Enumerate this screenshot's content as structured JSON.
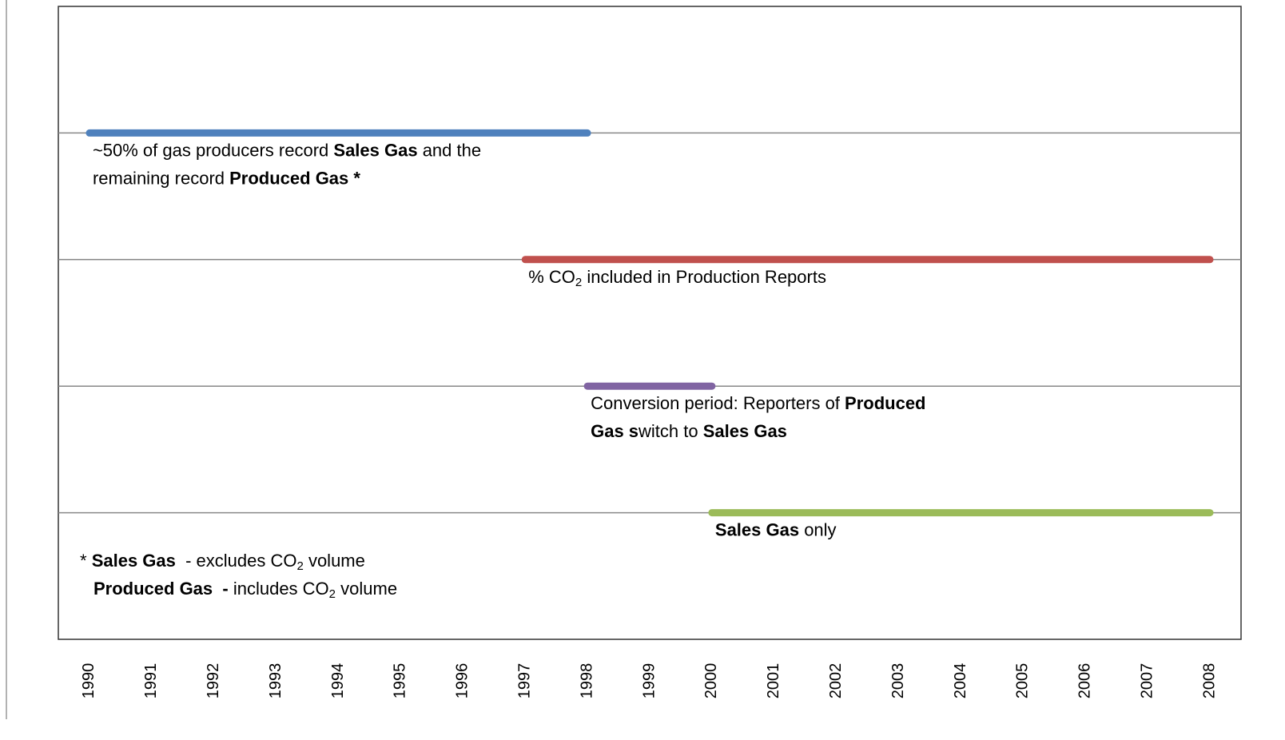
{
  "chart_data": {
    "type": "timeline",
    "xlim": [
      1989.5,
      2008.5
    ],
    "xticks": [
      1990,
      1991,
      1992,
      1993,
      1994,
      1995,
      1996,
      1997,
      1998,
      1999,
      2000,
      2001,
      2002,
      2003,
      2004,
      2005,
      2006,
      2007,
      2008
    ],
    "series": [
      {
        "color": "#4f81bd",
        "start": 1990,
        "end": 1998,
        "label": [
          [
            {
              "text": "~50% of gas producers record "
            },
            {
              "text": "Sales Gas",
              "bold": true
            },
            {
              "text": " and the"
            }
          ],
          [
            {
              "text": "remaining record "
            },
            {
              "text": "Produced Gas *",
              "bold": true
            }
          ]
        ]
      },
      {
        "color": "#c0504d",
        "start": 1997,
        "end": 2008,
        "label": [
          [
            {
              "text": "% CO"
            },
            {
              "text": "2",
              "sub": true
            },
            {
              "text": " included in Production Reports"
            }
          ]
        ]
      },
      {
        "color": "#8064a2",
        "start": 1998,
        "end": 2000,
        "label": [
          [
            {
              "text": "Conversion period: Reporters of "
            },
            {
              "text": "Produced",
              "bold": true
            }
          ],
          [
            {
              "text": "Gas s",
              "bold": true
            },
            {
              "text": "witch to "
            },
            {
              "text": "Sales Gas",
              "bold": true
            }
          ]
        ]
      },
      {
        "color": "#9bbb59",
        "start": 2000,
        "end": 2008,
        "label": [
          [
            {
              "text": "Sales Gas",
              "bold": true
            },
            {
              "text": " only"
            }
          ]
        ]
      }
    ],
    "footnote": [
      [
        {
          "text": "* "
        },
        {
          "text": "Sales Gas",
          "bold": true
        },
        {
          "text": "  - excludes CO"
        },
        {
          "text": "2",
          "sub": true
        },
        {
          "text": " volume"
        }
      ],
      [
        {
          "text": "Produced Gas  -",
          "bold": true
        },
        {
          "text": " includes CO"
        },
        {
          "text": "2",
          "sub": true
        },
        {
          "text": " volume"
        }
      ]
    ]
  }
}
